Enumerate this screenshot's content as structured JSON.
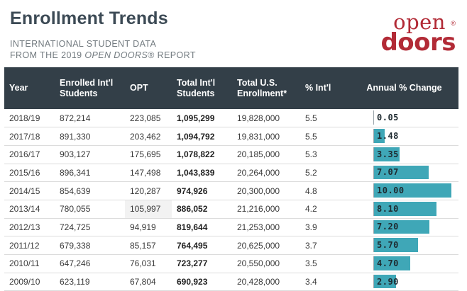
{
  "header": {
    "title": "Enrollment Trends",
    "subtitle_line1": "INTERNATIONAL STUDENT DATA",
    "subtitle_line2_prefix": "FROM THE 2019 ",
    "subtitle_line2_italic": "OPEN DOORS",
    "subtitle_line2_suffix": "® REPORT"
  },
  "logo": {
    "line1": "open",
    "line2": "doors",
    "reg": "®",
    "color": "#b22a36"
  },
  "table": {
    "header_bg": "#333f48",
    "bar_color": "#3fa7b7",
    "columns": [
      "Year",
      "Enrolled Int'l Students",
      "OPT",
      "Total Int'l Students",
      "Total U.S. Enrollment*",
      "% Int'l",
      "Annual % Change"
    ],
    "rows": [
      {
        "year": "2018/19",
        "enrolled": "872,214",
        "opt": "223,085",
        "total_intl": "1,095,299",
        "total_us": "19,828,000",
        "pct_intl": "5.5",
        "change": "0.05",
        "change_value": 0.05
      },
      {
        "year": "2017/18",
        "enrolled": "891,330",
        "opt": "203,462",
        "total_intl": "1,094,792",
        "total_us": "19,831,000",
        "pct_intl": "5.5",
        "change": "1.48",
        "change_value": 1.48
      },
      {
        "year": "2016/17",
        "enrolled": "903,127",
        "opt": "175,695",
        "total_intl": "1,078,822",
        "total_us": "20,185,000",
        "pct_intl": "5.3",
        "change": "3.35",
        "change_value": 3.35
      },
      {
        "year": "2015/16",
        "enrolled": "896,341",
        "opt": "147,498",
        "total_intl": "1,043,839",
        "total_us": "20,264,000",
        "pct_intl": "5.2",
        "change": "7.07",
        "change_value": 7.07
      },
      {
        "year": "2014/15",
        "enrolled": "854,639",
        "opt": "120,287",
        "total_intl": "974,926",
        "total_us": "20,300,000",
        "pct_intl": "4.8",
        "change": "10.00",
        "change_value": 10.0
      },
      {
        "year": "2013/14",
        "enrolled": "780,055",
        "opt": "105,997",
        "total_intl": "886,052",
        "total_us": "21,216,000",
        "pct_intl": "4.2",
        "change": "8.10",
        "change_value": 8.1
      },
      {
        "year": "2012/13",
        "enrolled": "724,725",
        "opt": "94,919",
        "total_intl": "819,644",
        "total_us": "21,253,000",
        "pct_intl": "3.9",
        "change": "7.20",
        "change_value": 7.2
      },
      {
        "year": "2011/12",
        "enrolled": "679,338",
        "opt": "85,157",
        "total_intl": "764,495",
        "total_us": "20,625,000",
        "pct_intl": "3.7",
        "change": "5.70",
        "change_value": 5.7
      },
      {
        "year": "2010/11",
        "enrolled": "647,246",
        "opt": "76,031",
        "total_intl": "723,277",
        "total_us": "20,550,000",
        "pct_intl": "3.5",
        "change": "4.70",
        "change_value": 4.7
      },
      {
        "year": "2009/10",
        "enrolled": "623,119",
        "opt": "67,804",
        "total_intl": "690,923",
        "total_us": "20,428,000",
        "pct_intl": "3.4",
        "change": "2.90",
        "change_value": 2.9
      }
    ]
  }
}
